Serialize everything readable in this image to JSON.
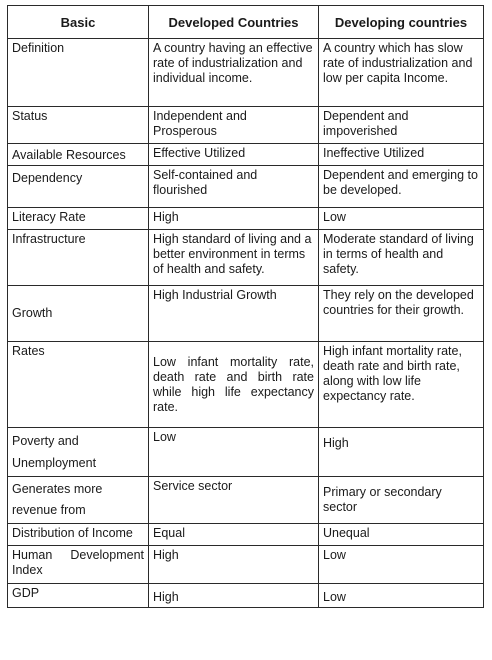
{
  "table": {
    "headers": [
      "Basic",
      "Developed Countries",
      "Developing countries"
    ],
    "rows": [
      {
        "basic": "Definition",
        "developed": "A country having an effective rate of industrialization and individual income.",
        "developing": "A country which has slow rate of industrialization and low per capita Income."
      },
      {
        "basic": "Status",
        "developed": "Independent and Prosperous",
        "developing": "Dependent and impoverished"
      },
      {
        "basic": "Available Resources",
        "developed": "Effective Utilized",
        "developing": "Ineffective Utilized"
      },
      {
        "basic": "Dependency",
        "developed": "Self-contained and flourished",
        "developing": "Dependent and emerging to be developed."
      },
      {
        "basic": "Literacy Rate",
        "developed": "High",
        "developing": "Low"
      },
      {
        "basic": "Infrastructure",
        "developed": "High standard of living and a better environment in terms of health and safety.",
        "developing": "Moderate standard of living in terms of health and safety."
      },
      {
        "basic": "Growth",
        "developed": "High Industrial Growth",
        "developing": "They rely on the developed countries for their growth."
      },
      {
        "basic": "Rates",
        "developed": "Low infant mortality rate, death rate and birth rate while high life expectancy rate.",
        "developing": "High infant mortality rate, death rate and birth rate, along with low life expectancy rate."
      },
      {
        "basic": "Poverty and Unemployment",
        "developed": "Low",
        "developing": "High"
      },
      {
        "basic": "Generates more revenue from",
        "developed": "Service sector",
        "developing": "Primary or secondary sector"
      },
      {
        "basic": "Distribution of Income",
        "developed": "Equal",
        "developing": "Unequal"
      },
      {
        "basic": "Human Development Index",
        "developed": "High",
        "developing": "Low"
      },
      {
        "basic": "GDP",
        "developed": "High",
        "developing": "Low"
      }
    ]
  }
}
